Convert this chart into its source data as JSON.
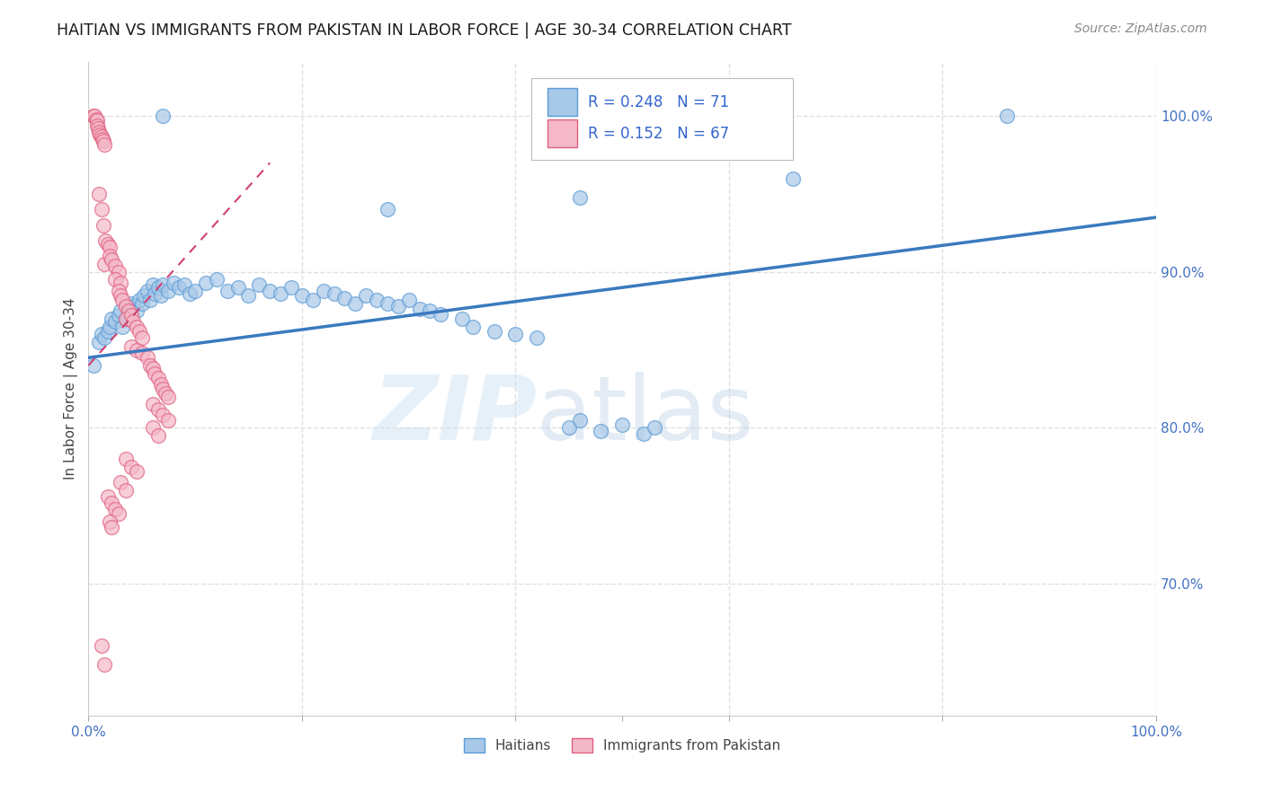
{
  "title": "HAITIAN VS IMMIGRANTS FROM PAKISTAN IN LABOR FORCE | AGE 30-34 CORRELATION CHART",
  "source": "Source: ZipAtlas.com",
  "ylabel": "In Labor Force | Age 30-34",
  "xlim": [
    0.0,
    1.0
  ],
  "ylim": [
    0.615,
    1.035
  ],
  "y_tick_labels_right": [
    "70.0%",
    "80.0%",
    "90.0%",
    "100.0%"
  ],
  "y_ticks_right": [
    0.7,
    0.8,
    0.9,
    1.0
  ],
  "legend_r_blue": "0.248",
  "legend_n_blue": "71",
  "legend_r_pink": "0.152",
  "legend_n_pink": "67",
  "blue_color": "#a8c8e8",
  "blue_edge": "#5b9bd5",
  "pink_color": "#f4b8c8",
  "pink_edge": "#e06080",
  "trendline_blue": "#3a7abf",
  "trendline_pink": "#d04070",
  "blue_scatter": [
    [
      0.005,
      0.84
    ],
    [
      0.01,
      0.855
    ],
    [
      0.012,
      0.86
    ],
    [
      0.015,
      0.858
    ],
    [
      0.018,
      0.862
    ],
    [
      0.02,
      0.865
    ],
    [
      0.022,
      0.87
    ],
    [
      0.025,
      0.868
    ],
    [
      0.028,
      0.872
    ],
    [
      0.03,
      0.875
    ],
    [
      0.032,
      0.865
    ],
    [
      0.035,
      0.87
    ],
    [
      0.038,
      0.875
    ],
    [
      0.04,
      0.88
    ],
    [
      0.042,
      0.878
    ],
    [
      0.045,
      0.875
    ],
    [
      0.048,
      0.882
    ],
    [
      0.05,
      0.88
    ],
    [
      0.052,
      0.885
    ],
    [
      0.055,
      0.888
    ],
    [
      0.058,
      0.882
    ],
    [
      0.06,
      0.892
    ],
    [
      0.062,
      0.886
    ],
    [
      0.065,
      0.89
    ],
    [
      0.068,
      0.885
    ],
    [
      0.07,
      0.892
    ],
    [
      0.075,
      0.888
    ],
    [
      0.08,
      0.893
    ],
    [
      0.085,
      0.89
    ],
    [
      0.09,
      0.892
    ],
    [
      0.095,
      0.886
    ],
    [
      0.1,
      0.888
    ],
    [
      0.11,
      0.893
    ],
    [
      0.12,
      0.895
    ],
    [
      0.13,
      0.888
    ],
    [
      0.14,
      0.89
    ],
    [
      0.15,
      0.885
    ],
    [
      0.16,
      0.892
    ],
    [
      0.17,
      0.888
    ],
    [
      0.18,
      0.886
    ],
    [
      0.19,
      0.89
    ],
    [
      0.2,
      0.885
    ],
    [
      0.21,
      0.882
    ],
    [
      0.22,
      0.888
    ],
    [
      0.23,
      0.886
    ],
    [
      0.24,
      0.883
    ],
    [
      0.25,
      0.88
    ],
    [
      0.26,
      0.885
    ],
    [
      0.27,
      0.882
    ],
    [
      0.28,
      0.88
    ],
    [
      0.29,
      0.878
    ],
    [
      0.3,
      0.882
    ],
    [
      0.31,
      0.876
    ],
    [
      0.32,
      0.875
    ],
    [
      0.33,
      0.873
    ],
    [
      0.35,
      0.87
    ],
    [
      0.36,
      0.865
    ],
    [
      0.38,
      0.862
    ],
    [
      0.4,
      0.86
    ],
    [
      0.42,
      0.858
    ],
    [
      0.45,
      0.8
    ],
    [
      0.46,
      0.805
    ],
    [
      0.48,
      0.798
    ],
    [
      0.5,
      0.802
    ],
    [
      0.52,
      0.796
    ],
    [
      0.53,
      0.8
    ],
    [
      0.28,
      0.94
    ],
    [
      0.07,
      1.0
    ],
    [
      0.86,
      1.0
    ],
    [
      0.46,
      0.948
    ],
    [
      0.66,
      0.96
    ]
  ],
  "pink_scatter": [
    [
      0.005,
      1.0
    ],
    [
      0.006,
      1.0
    ],
    [
      0.007,
      0.998
    ],
    [
      0.008,
      0.997
    ],
    [
      0.008,
      0.994
    ],
    [
      0.009,
      0.992
    ],
    [
      0.01,
      0.99
    ],
    [
      0.011,
      0.988
    ],
    [
      0.012,
      0.987
    ],
    [
      0.013,
      0.985
    ],
    [
      0.014,
      0.984
    ],
    [
      0.015,
      0.982
    ],
    [
      0.01,
      0.95
    ],
    [
      0.012,
      0.94
    ],
    [
      0.014,
      0.93
    ],
    [
      0.016,
      0.92
    ],
    [
      0.018,
      0.918
    ],
    [
      0.02,
      0.916
    ],
    [
      0.015,
      0.905
    ],
    [
      0.02,
      0.91
    ],
    [
      0.022,
      0.908
    ],
    [
      0.025,
      0.904
    ],
    [
      0.028,
      0.9
    ],
    [
      0.025,
      0.895
    ],
    [
      0.03,
      0.893
    ],
    [
      0.028,
      0.888
    ],
    [
      0.03,
      0.885
    ],
    [
      0.032,
      0.882
    ],
    [
      0.035,
      0.878
    ],
    [
      0.038,
      0.875
    ],
    [
      0.035,
      0.87
    ],
    [
      0.04,
      0.872
    ],
    [
      0.042,
      0.868
    ],
    [
      0.045,
      0.865
    ],
    [
      0.048,
      0.862
    ],
    [
      0.05,
      0.858
    ],
    [
      0.04,
      0.852
    ],
    [
      0.045,
      0.85
    ],
    [
      0.05,
      0.848
    ],
    [
      0.055,
      0.845
    ],
    [
      0.058,
      0.84
    ],
    [
      0.06,
      0.838
    ],
    [
      0.062,
      0.835
    ],
    [
      0.065,
      0.832
    ],
    [
      0.068,
      0.828
    ],
    [
      0.07,
      0.825
    ],
    [
      0.072,
      0.822
    ],
    [
      0.075,
      0.82
    ],
    [
      0.06,
      0.815
    ],
    [
      0.065,
      0.812
    ],
    [
      0.07,
      0.808
    ],
    [
      0.075,
      0.805
    ],
    [
      0.06,
      0.8
    ],
    [
      0.065,
      0.795
    ],
    [
      0.035,
      0.78
    ],
    [
      0.04,
      0.775
    ],
    [
      0.045,
      0.772
    ],
    [
      0.03,
      0.765
    ],
    [
      0.035,
      0.76
    ],
    [
      0.018,
      0.756
    ],
    [
      0.022,
      0.752
    ],
    [
      0.025,
      0.748
    ],
    [
      0.028,
      0.745
    ],
    [
      0.02,
      0.74
    ],
    [
      0.022,
      0.736
    ],
    [
      0.012,
      0.66
    ],
    [
      0.015,
      0.648
    ]
  ],
  "watermark_zip": "ZIP",
  "watermark_atlas": "atlas",
  "background_color": "#ffffff",
  "grid_color": "#e0e0e0"
}
